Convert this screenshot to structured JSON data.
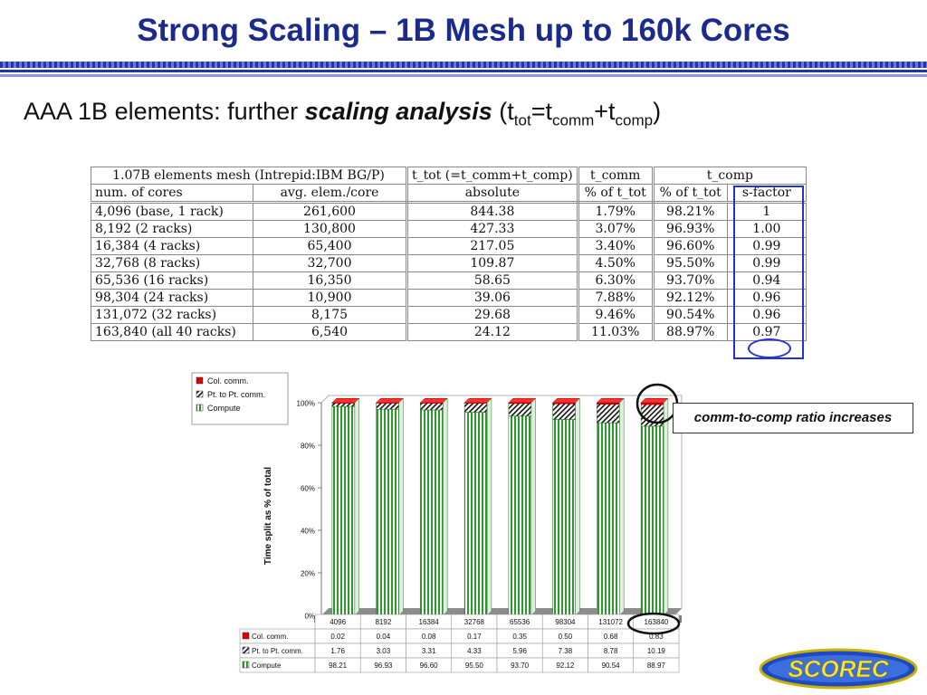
{
  "title": "Strong Scaling – 1B Mesh up to 160k Cores",
  "subtitle": {
    "prefix": "AAA 1B elements: further ",
    "emphasis": "scaling analysis",
    "formula_open": " (t",
    "sub_tot": "tot",
    "eq": "=t",
    "sub_comm": "comm",
    "plus": "+t",
    "sub_comp": "comp",
    "close": ")"
  },
  "table": {
    "header1": {
      "c1": "1.07B elements mesh (Intrepid:IBM BG/P)",
      "c2": "t_tot (=t_comm+t_comp)",
      "c3": "t_comm",
      "c4": "t_comp"
    },
    "header2": [
      "num. of cores",
      "avg. elem./core",
      "absolute",
      "% of t_tot",
      "% of t_tot",
      "s-factor"
    ],
    "rows": [
      [
        "4,096 (base, 1 rack)",
        "261,600",
        "844.38",
        "1.79%",
        "98.21%",
        "1"
      ],
      [
        "8,192 (2 racks)",
        "130,800",
        "427.33",
        "3.07%",
        "96.93%",
        "1.00"
      ],
      [
        "16,384 (4 racks)",
        "65,400",
        "217.05",
        "3.40%",
        "96.60%",
        "0.99"
      ],
      [
        "32,768 (8 racks)",
        "32,700",
        "109.87",
        "4.50%",
        "95.50%",
        "0.99"
      ],
      [
        "65,536 (16 racks)",
        "16,350",
        "58.65",
        "6.30%",
        "93.70%",
        "0.94"
      ],
      [
        "98,304 (24 racks)",
        "10,900",
        "39.06",
        "7.88%",
        "92.12%",
        "0.96"
      ],
      [
        "131,072 (32 racks)",
        "8,175",
        "29.68",
        "9.46%",
        "90.54%",
        "0.96"
      ],
      [
        "163,840 (all 40 racks)",
        "6,540",
        "24.12",
        "11.03%",
        "88.97%",
        "0.97"
      ]
    ]
  },
  "chart_data": {
    "type": "bar",
    "stacked": true,
    "ylabel": "Time split as  % of total",
    "ylim": [
      0,
      100
    ],
    "yticks": [
      "0%",
      "20%",
      "40%",
      "60%",
      "80%",
      "100%"
    ],
    "categories": [
      "4096",
      "8192",
      "16384",
      "32768",
      "65536",
      "98304",
      "131072",
      "163840"
    ],
    "series": [
      {
        "name": "Col. comm.",
        "color": "#e00000",
        "values": [
          0.02,
          0.04,
          0.08,
          0.17,
          0.35,
          0.5,
          0.68,
          0.83
        ]
      },
      {
        "name": "Pt. to Pt. comm.",
        "color": "#1a2fa0",
        "values": [
          1.76,
          3.03,
          3.31,
          4.33,
          5.96,
          7.38,
          8.78,
          10.19
        ]
      },
      {
        "name": "Compute",
        "color": "#2a9a2a",
        "values": [
          98.21,
          96.93,
          96.6,
          95.5,
          93.7,
          92.12,
          90.54,
          88.97
        ]
      }
    ],
    "table_rows": [
      {
        "label": "Col. comm.",
        "values": [
          "0.02",
          "0.04",
          "0.08",
          "0.17",
          "0.35",
          "0.50",
          "0.68",
          "0.83"
        ]
      },
      {
        "label": "Pt. to Pt. comm.",
        "values": [
          "1.76",
          "3.03",
          "3.31",
          "4.33",
          "5.96",
          "7.38",
          "8.78",
          "10.19"
        ]
      },
      {
        "label": "Compute",
        "values": [
          "98.21",
          "96.93",
          "96.60",
          "95.50",
          "93.70",
          "92.12",
          "90.54",
          "88.97"
        ]
      }
    ],
    "legend_position": "top-left",
    "grid": false
  },
  "callout": "comm-to-comp ratio increases",
  "logo_text": "SCOREC"
}
